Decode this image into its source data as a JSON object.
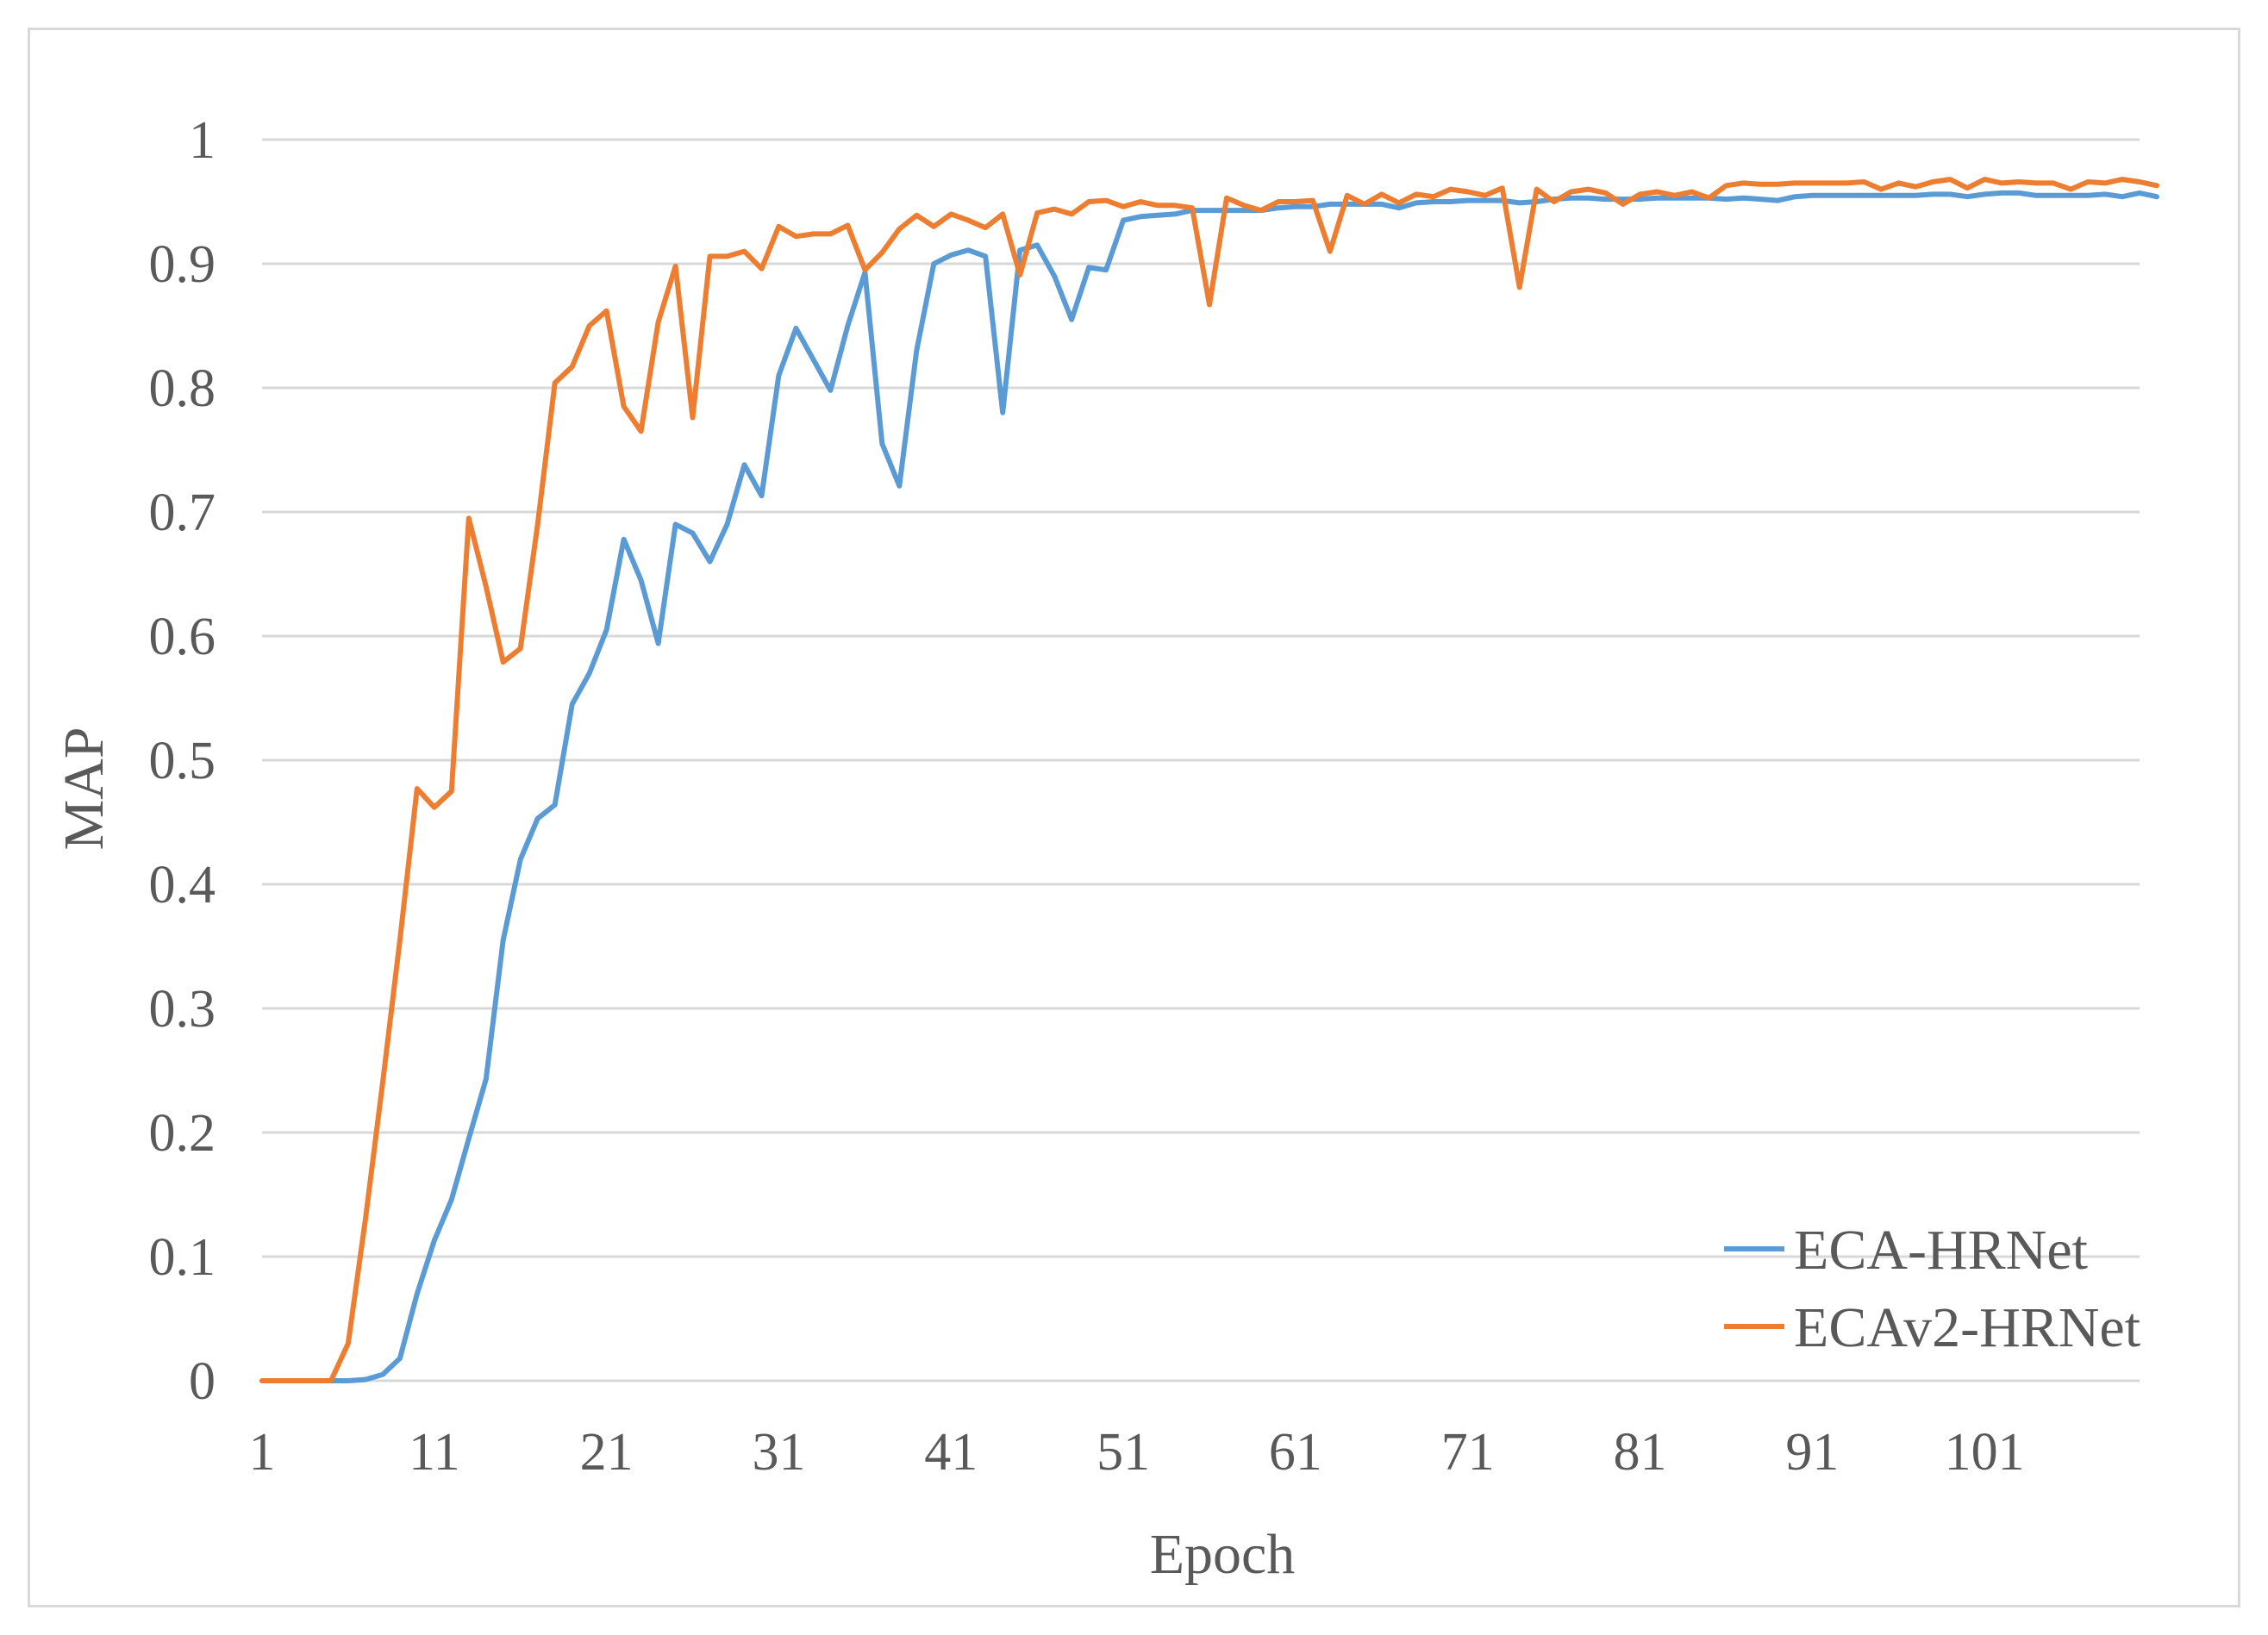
{
  "chart_data": {
    "type": "line",
    "title": "",
    "xlabel": "Epoch",
    "ylabel": "MAP",
    "xlim": [
      1,
      110
    ],
    "ylim": [
      0,
      1
    ],
    "x_ticks": [
      "1",
      "11",
      "21",
      "31",
      "41",
      "51",
      "61",
      "71",
      "81",
      "91",
      "101"
    ],
    "y_ticks": [
      "0",
      "0.1",
      "0.2",
      "0.3",
      "0.4",
      "0.5",
      "0.6",
      "0.7",
      "0.8",
      "0.9",
      "1"
    ],
    "grid": "horizontal",
    "legend_position": "bottom-right",
    "series": [
      {
        "name": "ECA-HRNet",
        "color": "#5B9BD5",
        "values": [
          0,
          0,
          0,
          0,
          0,
          0,
          0.001,
          0.005,
          0.018,
          0.07,
          0.113,
          0.146,
          0.195,
          0.243,
          0.355,
          0.42,
          0.453,
          0.464,
          0.545,
          0.57,
          0.605,
          0.678,
          0.645,
          0.594,
          0.69,
          0.683,
          0.66,
          0.69,
          0.738,
          0.713,
          0.81,
          0.848,
          0.823,
          0.798,
          0.85,
          0.893,
          0.755,
          0.721,
          0.83,
          0.9,
          0.907,
          0.911,
          0.906,
          0.78,
          0.911,
          0.915,
          0.89,
          0.855,
          0.897,
          0.895,
          0.935,
          0.938,
          0.939,
          0.94,
          0.943,
          0.943,
          0.943,
          0.943,
          0.943,
          0.945,
          0.946,
          0.946,
          0.948,
          0.948,
          0.948,
          0.948,
          0.945,
          0.949,
          0.95,
          0.95,
          0.951,
          0.951,
          0.951,
          0.949,
          0.95,
          0.952,
          0.953,
          0.953,
          0.952,
          0.952,
          0.952,
          0.953,
          0.953,
          0.953,
          0.953,
          0.952,
          0.953,
          0.952,
          0.951,
          0.954,
          0.955,
          0.955,
          0.955,
          0.955,
          0.955,
          0.955,
          0.955,
          0.956,
          0.956,
          0.954,
          0.956,
          0.957,
          0.957,
          0.955,
          0.955,
          0.955,
          0.955,
          0.956,
          0.954,
          0.957,
          0.954
        ]
      },
      {
        "name": "ECAv2-HRNet",
        "color": "#ED7D31",
        "values": [
          0,
          0,
          0,
          0,
          0,
          0.03,
          0.13,
          0.24,
          0.355,
          0.477,
          0.462,
          0.475,
          0.695,
          0.64,
          0.579,
          0.59,
          0.69,
          0.804,
          0.817,
          0.85,
          0.862,
          0.785,
          0.765,
          0.853,
          0.898,
          0.776,
          0.906,
          0.906,
          0.91,
          0.896,
          0.93,
          0.922,
          0.924,
          0.924,
          0.931,
          0.895,
          0.909,
          0.928,
          0.939,
          0.93,
          0.94,
          0.935,
          0.929,
          0.94,
          0.891,
          0.941,
          0.944,
          0.94,
          0.95,
          0.951,
          0.946,
          0.95,
          0.947,
          0.947,
          0.945,
          0.867,
          0.953,
          0.947,
          0.943,
          0.95,
          0.95,
          0.951,
          0.91,
          0.955,
          0.948,
          0.956,
          0.949,
          0.956,
          0.954,
          0.96,
          0.958,
          0.955,
          0.961,
          0.881,
          0.96,
          0.95,
          0.958,
          0.96,
          0.957,
          0.948,
          0.956,
          0.958,
          0.955,
          0.958,
          0.953,
          0.963,
          0.965,
          0.964,
          0.964,
          0.965,
          0.965,
          0.965,
          0.965,
          0.966,
          0.96,
          0.965,
          0.962,
          0.966,
          0.968,
          0.961,
          0.968,
          0.965,
          0.966,
          0.965,
          0.965,
          0.96,
          0.966,
          0.965,
          0.968,
          0.966,
          0.963
        ]
      }
    ]
  }
}
